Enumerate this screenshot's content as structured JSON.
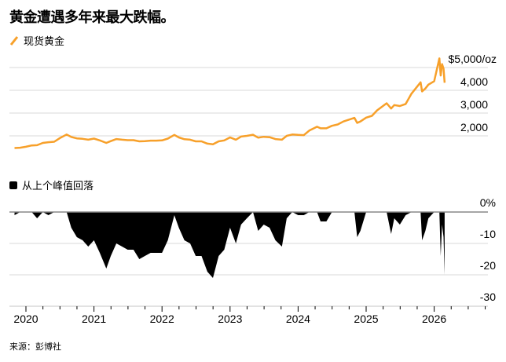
{
  "title": "黄金遭遇多年来最大跌幅。",
  "source": "来源：彭博社",
  "colors": {
    "price": "#f7a02a",
    "drawdown": "#000000",
    "grid": "#d9d9d9",
    "zero": "#888888"
  },
  "chart_data": [
    {
      "type": "line",
      "legend": "现货黄金",
      "unit_label": "$5,000/oz",
      "y_ticks": [
        {
          "v": 5000,
          "label": "$5,000/oz"
        },
        {
          "v": 4000,
          "label": "4,000"
        },
        {
          "v": 3000,
          "label": "3,000"
        },
        {
          "v": 2000,
          "label": "2,000"
        }
      ],
      "grid": true,
      "x": [
        "2019-11-01",
        "2019-12-01",
        "2020-01-01",
        "2020-02-01",
        "2020-03-01",
        "2020-04-01",
        "2020-05-01",
        "2020-06-01",
        "2020-07-01",
        "2020-08-07",
        "2020-09-01",
        "2020-10-01",
        "2020-11-01",
        "2020-12-01",
        "2021-01-01",
        "2021-02-01",
        "2021-03-08",
        "2021-04-01",
        "2021-05-01",
        "2021-06-01",
        "2021-07-01",
        "2021-08-01",
        "2021-09-01",
        "2021-10-01",
        "2021-11-01",
        "2021-12-01",
        "2022-01-01",
        "2022-02-01",
        "2022-03-08",
        "2022-04-01",
        "2022-05-01",
        "2022-06-01",
        "2022-07-01",
        "2022-08-01",
        "2022-09-01",
        "2022-10-01",
        "2022-11-01",
        "2022-12-01",
        "2023-01-01",
        "2023-02-01",
        "2023-03-01",
        "2023-04-01",
        "2023-05-04",
        "2023-06-01",
        "2023-07-01",
        "2023-08-01",
        "2023-09-01",
        "2023-10-06",
        "2023-11-01",
        "2023-12-01",
        "2024-01-01",
        "2024-02-01",
        "2024-03-01",
        "2024-04-12",
        "2024-05-01",
        "2024-06-01",
        "2024-07-01",
        "2024-08-01",
        "2024-09-01",
        "2024-10-30",
        "2024-11-14",
        "2024-12-01",
        "2025-01-01",
        "2025-02-01",
        "2025-03-01",
        "2025-04-21",
        "2025-05-15",
        "2025-06-01",
        "2025-07-01",
        "2025-08-01",
        "2025-09-01",
        "2025-10-20",
        "2025-10-28",
        "2025-11-15",
        "2025-12-01",
        "2026-01-01",
        "2026-01-29",
        "2026-02-05",
        "2026-02-12",
        "2026-02-20",
        "2026-02-26"
      ],
      "values": [
        1465,
        1480,
        1520,
        1580,
        1590,
        1690,
        1720,
        1740,
        1900,
        2060,
        1950,
        1890,
        1870,
        1830,
        1880,
        1800,
        1690,
        1770,
        1860,
        1830,
        1810,
        1810,
        1760,
        1770,
        1790,
        1790,
        1800,
        1880,
        2040,
        1930,
        1850,
        1830,
        1760,
        1760,
        1660,
        1630,
        1760,
        1800,
        1930,
        1830,
        1970,
        2000,
        2050,
        1920,
        1960,
        1940,
        1860,
        1830,
        2000,
        2060,
        2040,
        2030,
        2230,
        2400,
        2330,
        2330,
        2440,
        2500,
        2630,
        2790,
        2570,
        2630,
        2800,
        2880,
        3120,
        3430,
        3200,
        3350,
        3310,
        3400,
        3850,
        4350,
        3950,
        4080,
        4250,
        4400,
        5400,
        4650,
        5150,
        4950,
        4330
      ]
    },
    {
      "type": "area",
      "legend": "从上个峰值回落",
      "y_ticks": [
        {
          "v": 0,
          "label": "0%"
        },
        {
          "v": -10,
          "label": "-10"
        },
        {
          "v": -20,
          "label": "-20"
        },
        {
          "v": -30,
          "label": "-30"
        }
      ],
      "ylim": [
        -30,
        0
      ],
      "x_ticks": [
        "2020",
        "2021",
        "2022",
        "2023",
        "2024",
        "2025",
        "2026"
      ],
      "values": [
        -1,
        0,
        0,
        0,
        -2,
        0,
        -1,
        0,
        0,
        0,
        -5,
        -8,
        -9,
        -11,
        -9,
        -13,
        -18,
        -14,
        -10,
        -11,
        -12,
        -12,
        -15,
        -14,
        -13,
        -13,
        -13,
        -9,
        -1,
        -5,
        -9,
        -10,
        -14,
        -14,
        -19,
        -21,
        -14,
        -12,
        -5,
        -10,
        -4,
        -2,
        0,
        -6,
        -4,
        -5,
        -9,
        -11,
        -2,
        0,
        -1,
        -1,
        0,
        0,
        -3,
        -3,
        0,
        0,
        0,
        0,
        -8,
        -6,
        0,
        0,
        0,
        0,
        -7,
        -2,
        -4,
        -1,
        0,
        0,
        -9,
        -6,
        -2,
        0,
        0,
        -14,
        -4,
        -8,
        -20
      ]
    }
  ]
}
